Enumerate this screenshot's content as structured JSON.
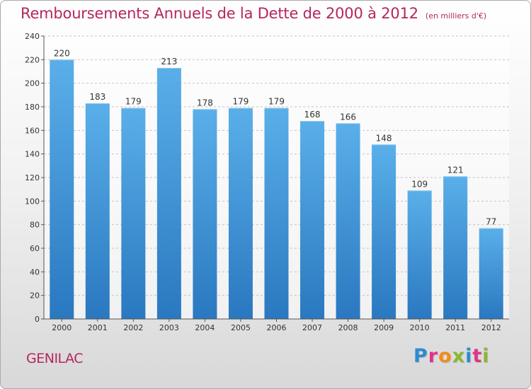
{
  "chart_data": {
    "type": "bar",
    "title": "Remboursements Annuels de la Dette de 2000 à 2012",
    "subtitle": "(en milliers d'€)",
    "categories": [
      "2000",
      "2001",
      "2002",
      "2003",
      "2004",
      "2005",
      "2006",
      "2007",
      "2008",
      "2009",
      "2010",
      "2011",
      "2012"
    ],
    "values": [
      220,
      183,
      179,
      213,
      178,
      179,
      179,
      168,
      166,
      148,
      109,
      121,
      77
    ],
    "y_ticks": [
      0,
      20,
      40,
      60,
      80,
      100,
      120,
      140,
      160,
      180,
      200,
      220,
      240
    ],
    "ylim": [
      0,
      240
    ],
    "xlabel": "",
    "ylabel": "",
    "grid": true,
    "bar_color": "#3a8fd6",
    "bar_color_light": "#5aafe9",
    "bar_color_dark": "#2a78c0",
    "title_color": "#b5265e"
  },
  "footer": {
    "commune": "GENILAC",
    "brand": "Proxiti",
    "brand_letter_colors": [
      "#2e8bd1",
      "#e0338a",
      "#f28c1b",
      "#8ab830",
      "#2e8bd1",
      "#e0338a",
      "#8ab830"
    ]
  }
}
